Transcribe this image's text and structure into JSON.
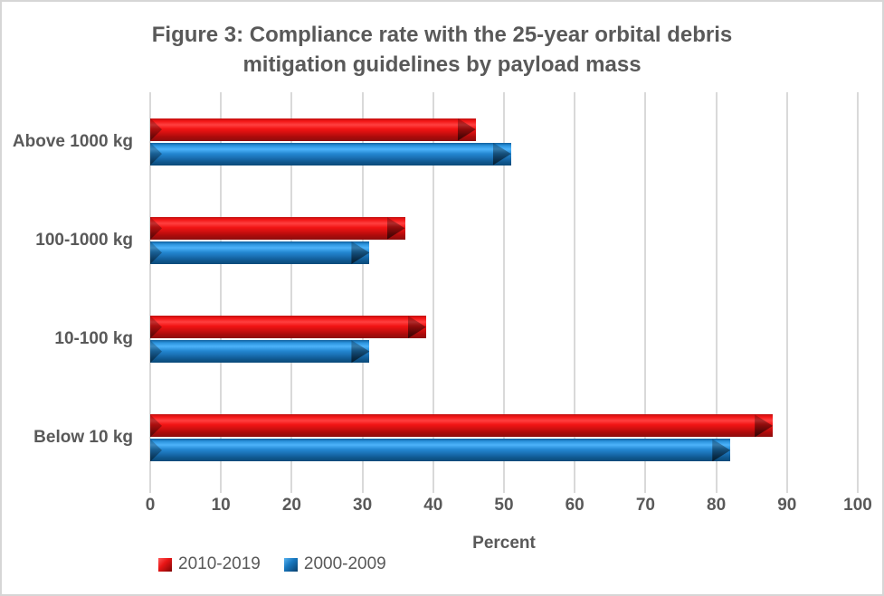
{
  "window": {
    "background": "#ffffff",
    "border_color": "#d6d6d6",
    "text_color": "#595959"
  },
  "chart_data": {
    "type": "bar",
    "orientation": "horizontal",
    "title": "Figure 3: Compliance rate with the 25-year orbital debris\nmitigation guidelines by payload mass",
    "xlabel": "Percent",
    "categories": [
      "Above 1000 kg",
      "100-1000 kg",
      "10-100 kg",
      "Below 10 kg"
    ],
    "series": [
      {
        "name": "2010-2019",
        "color": "#e01212",
        "values": [
          46,
          36,
          39,
          88
        ]
      },
      {
        "name": "2000-2009",
        "color": "#1b7fc4",
        "values": [
          51,
          31,
          31,
          82
        ]
      }
    ],
    "xlim": [
      0,
      100
    ],
    "xticks": [
      0,
      10,
      20,
      30,
      40,
      50,
      60,
      70,
      80,
      90,
      100
    ],
    "grid": "vertical",
    "gridline_color": "#d9d9d9",
    "legend_position": "bottom-left"
  }
}
